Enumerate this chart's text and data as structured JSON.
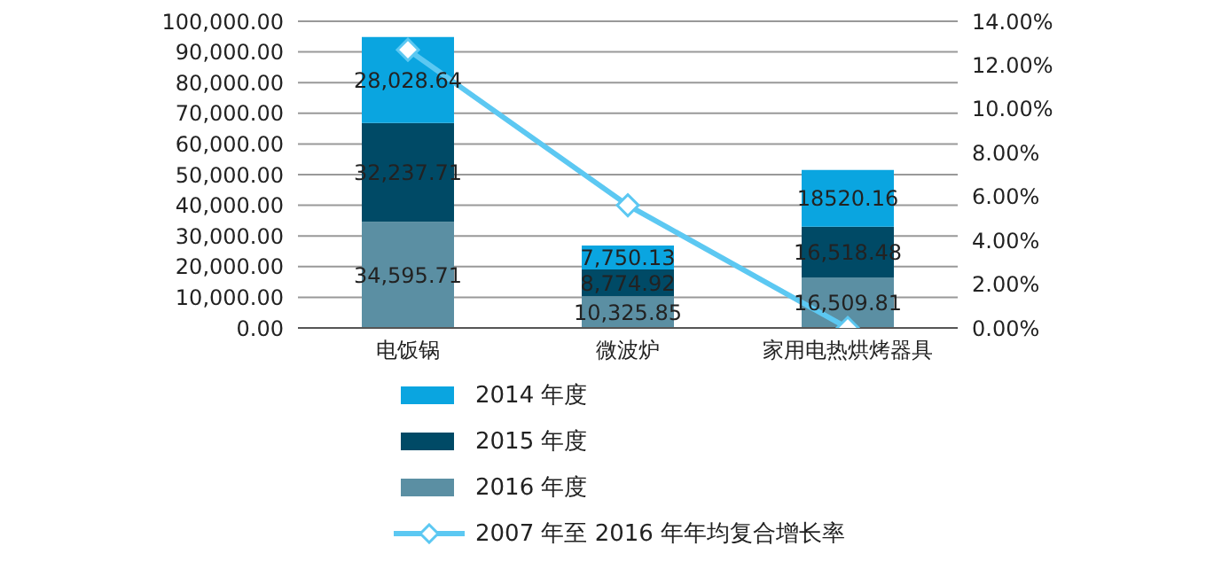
{
  "chart_data": {
    "type": "bar",
    "stacked": true,
    "categories": [
      "电饭锅",
      "微波炉",
      "家用电热烘烤器具"
    ],
    "series": [
      {
        "name": "2016 年度",
        "color": "#5b8fa3",
        "values": [
          34595.71,
          10325.85,
          16509.81
        ],
        "value_labels": [
          "34,595.71",
          "10,325.85",
          "16,509.81"
        ]
      },
      {
        "name": "2015 年度",
        "color": "#004a66",
        "values": [
          32237.71,
          8774.92,
          16518.48
        ],
        "value_labels": [
          "32,237.71",
          "8,774.92",
          "16,518.48"
        ]
      },
      {
        "name": "2014 年度",
        "color": "#0aa5e0",
        "values": [
          28028.64,
          7750.13,
          18520.16
        ],
        "value_labels": [
          "28,028.64",
          "7,750.13",
          "18520.16"
        ]
      },
      {
        "name": "2007 年至 2016 年年均复合增长率",
        "type": "line",
        "axis": "y2",
        "color": "#5cc8f2",
        "marker": "diamond",
        "values": [
          12.7,
          5.6,
          0.0
        ]
      }
    ],
    "ylim": [
      0,
      100000
    ],
    "yticks": [
      {
        "value": 0,
        "label": "0.00"
      },
      {
        "value": 10000,
        "label": "10,000.00"
      },
      {
        "value": 20000,
        "label": "20,000.00"
      },
      {
        "value": 30000,
        "label": "30,000.00"
      },
      {
        "value": 40000,
        "label": "40,000.00"
      },
      {
        "value": 50000,
        "label": "50,000.00"
      },
      {
        "value": 60000,
        "label": "60,000.00"
      },
      {
        "value": 70000,
        "label": "70,000.00"
      },
      {
        "value": 80000,
        "label": "80,000.00"
      },
      {
        "value": 90000,
        "label": "90,000.00"
      },
      {
        "value": 100000,
        "label": "100,000.00"
      }
    ],
    "y2lim": [
      0,
      14
    ],
    "y2ticks": [
      {
        "value": 0,
        "label": "0.00%"
      },
      {
        "value": 2,
        "label": "2.00%"
      },
      {
        "value": 4,
        "label": "4.00%"
      },
      {
        "value": 6,
        "label": "6.00%"
      },
      {
        "value": 8,
        "label": "8.00%"
      },
      {
        "value": 10,
        "label": "10.00%"
      },
      {
        "value": 12,
        "label": "12.00%"
      },
      {
        "value": 14,
        "label": "14.00%"
      }
    ],
    "grid": "y",
    "legend": "bottom"
  }
}
